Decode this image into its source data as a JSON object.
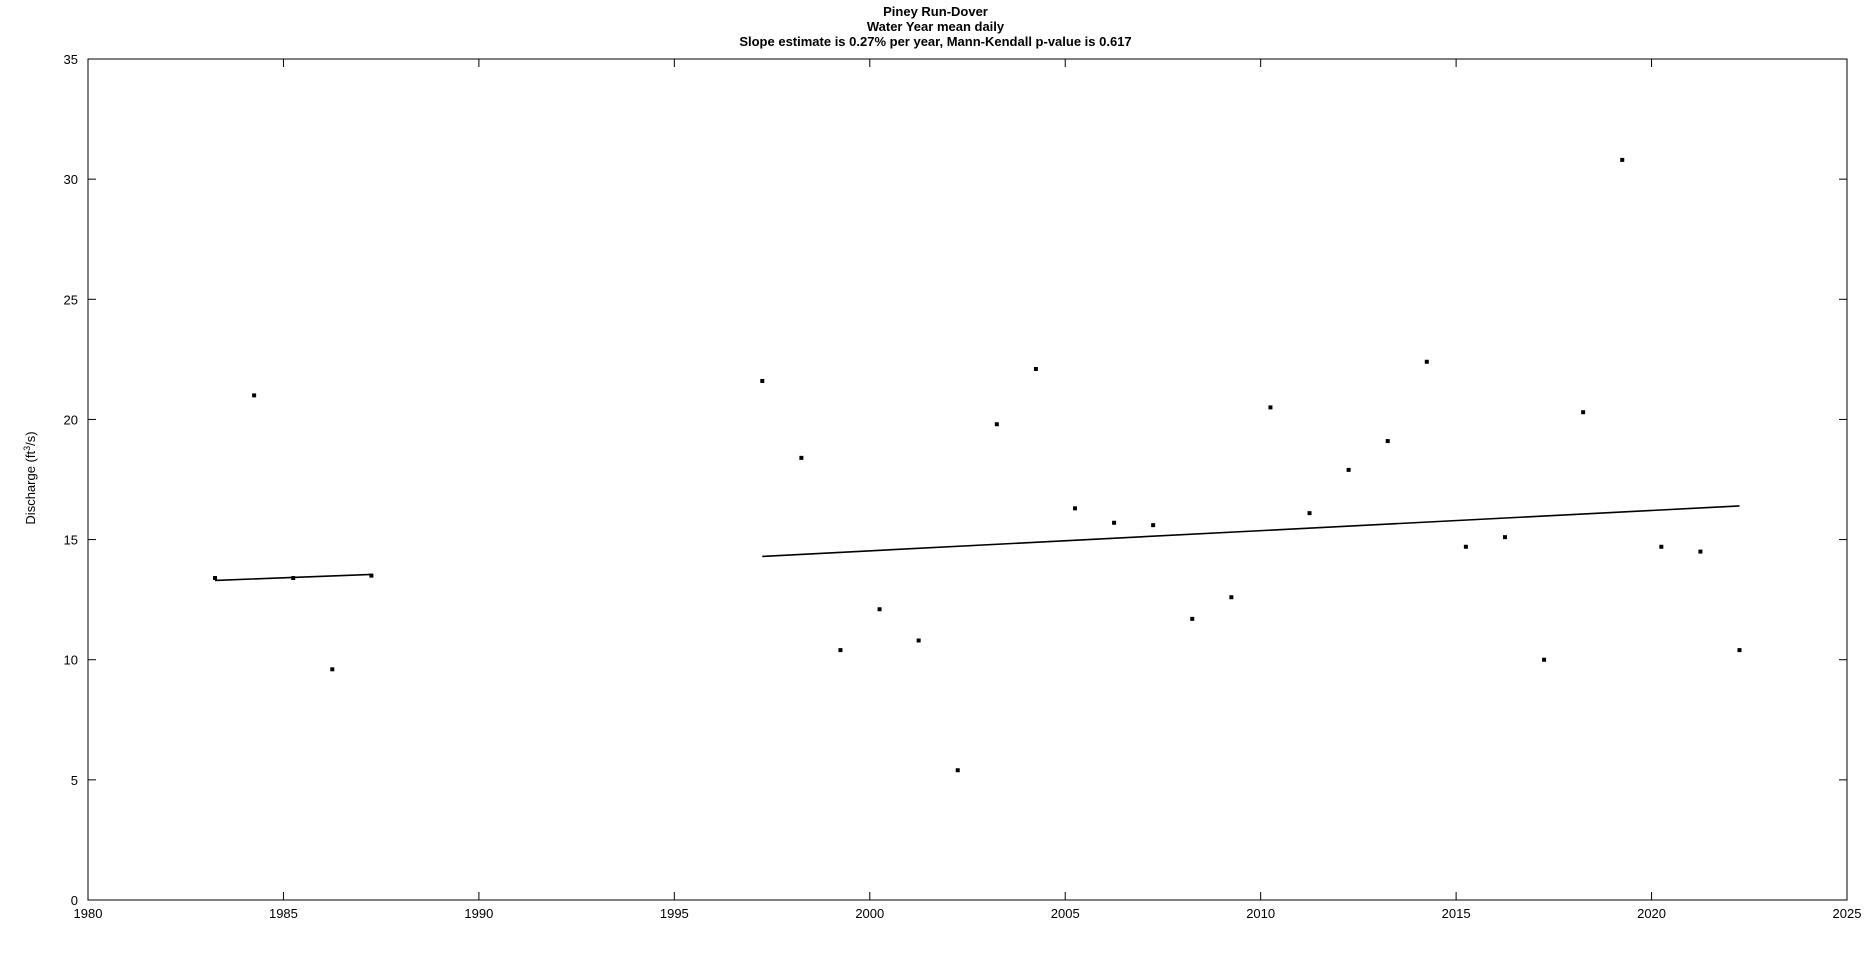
{
  "chart_data": {
    "type": "scatter",
    "title": "Piney Run-Dover",
    "subtitle": "Water Year  mean daily",
    "annotation": "Slope estimate is 0.27% per year, Mann-Kendall p-value is 0.617",
    "ylabel": {
      "prefix": "Discharge (ft",
      "sup": "3",
      "suffix": "/s)"
    },
    "xlabel": "",
    "xlim": [
      1980,
      2025
    ],
    "ylim": [
      0,
      35
    ],
    "x_ticks": [
      1980,
      1985,
      1990,
      1995,
      2000,
      2005,
      2010,
      2015,
      2020,
      2025
    ],
    "y_ticks": [
      0,
      5,
      10,
      15,
      20,
      25,
      30,
      35
    ],
    "grid": false,
    "points": [
      {
        "x": 1983.25,
        "y": 13.4
      },
      {
        "x": 1984.25,
        "y": 21.0
      },
      {
        "x": 1985.25,
        "y": 13.4
      },
      {
        "x": 1986.25,
        "y": 9.6
      },
      {
        "x": 1987.25,
        "y": 13.5
      },
      {
        "x": 1997.25,
        "y": 21.6
      },
      {
        "x": 1998.25,
        "y": 18.4
      },
      {
        "x": 1999.25,
        "y": 10.4
      },
      {
        "x": 2000.25,
        "y": 12.1
      },
      {
        "x": 2001.25,
        "y": 10.8
      },
      {
        "x": 2002.25,
        "y": 5.4
      },
      {
        "x": 2003.25,
        "y": 19.8
      },
      {
        "x": 2004.25,
        "y": 22.1
      },
      {
        "x": 2005.25,
        "y": 16.3
      },
      {
        "x": 2006.25,
        "y": 15.7
      },
      {
        "x": 2007.25,
        "y": 15.6
      },
      {
        "x": 2008.25,
        "y": 11.7
      },
      {
        "x": 2009.25,
        "y": 12.6
      },
      {
        "x": 2010.25,
        "y": 20.5
      },
      {
        "x": 2011.25,
        "y": 16.1
      },
      {
        "x": 2012.25,
        "y": 17.9
      },
      {
        "x": 2013.25,
        "y": 19.1
      },
      {
        "x": 2014.25,
        "y": 22.4
      },
      {
        "x": 2015.25,
        "y": 14.7
      },
      {
        "x": 2016.25,
        "y": 15.1
      },
      {
        "x": 2017.25,
        "y": 10.0
      },
      {
        "x": 2018.25,
        "y": 20.3
      },
      {
        "x": 2019.25,
        "y": 30.8
      },
      {
        "x": 2020.25,
        "y": 14.7
      },
      {
        "x": 2021.25,
        "y": 14.5
      },
      {
        "x": 2022.25,
        "y": 10.4
      }
    ],
    "trend_segments": [
      {
        "x": [
          1983.25,
          1987.25
        ],
        "y": [
          13.3,
          13.55
        ]
      },
      {
        "x": [
          1997.25,
          2022.25
        ],
        "y": [
          14.3,
          16.4
        ]
      }
    ]
  }
}
